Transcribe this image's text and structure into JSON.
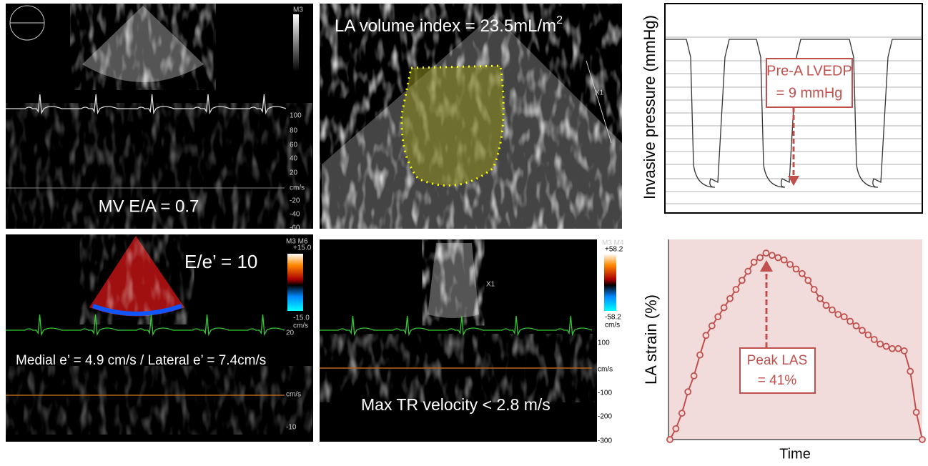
{
  "panels": {
    "mitral_inflow": {
      "label": "MV E/A = 0.7",
      "mode": "M3",
      "scale": [
        "100",
        "80",
        "60",
        "40",
        "20",
        "cm/s",
        "-20",
        "-40",
        "-60"
      ]
    },
    "la_volume": {
      "label": "LA volume index = 23.5mL/m",
      "superscript": "2",
      "marker": "X1"
    },
    "tissue_doppler": {
      "label": "E/e’ = 10",
      "detail": "Medial e’ = 4.9 cm/s / Lateral e’ = 7.4cm/s",
      "mode": "M3 M6",
      "color_scale": [
        "+15.0",
        "-15.0",
        "cm/s"
      ],
      "scale": [
        "20",
        "cm/s",
        "-10"
      ]
    },
    "tr_velocity": {
      "label": "Max TR velocity < 2.8 m/s",
      "mode": "M3 M4",
      "marker": "X1",
      "color_scale": [
        "+58.2",
        "-58.2",
        "cm/s"
      ],
      "scale": [
        "100",
        "cm/s",
        "-100",
        "-200",
        "-300"
      ]
    }
  },
  "pressure": {
    "ylabel": "Invasive pressure (mmHg)",
    "annotation": [
      "Pre-A LVEDP",
      "= 9 mmHg"
    ]
  },
  "chart_data": {
    "type": "line",
    "ylabel": "LA strain (%)",
    "xlabel": "Time",
    "annotation": [
      "Peak LAS",
      "= 41%"
    ],
    "color": "#c0504d",
    "values": [
      0,
      2.4,
      5.8,
      10.5,
      14,
      18.6,
      22.9,
      25,
      27,
      29,
      31,
      33,
      35,
      37,
      39,
      40,
      41,
      40.5,
      40,
      39.5,
      38.5,
      37.5,
      36.5,
      35,
      33,
      31,
      29.5,
      28.5,
      27.5,
      27,
      26,
      25,
      24,
      23,
      22,
      21,
      20.5,
      20,
      20,
      19.5,
      15,
      6,
      0
    ],
    "ylim": [
      0,
      44
    ]
  }
}
